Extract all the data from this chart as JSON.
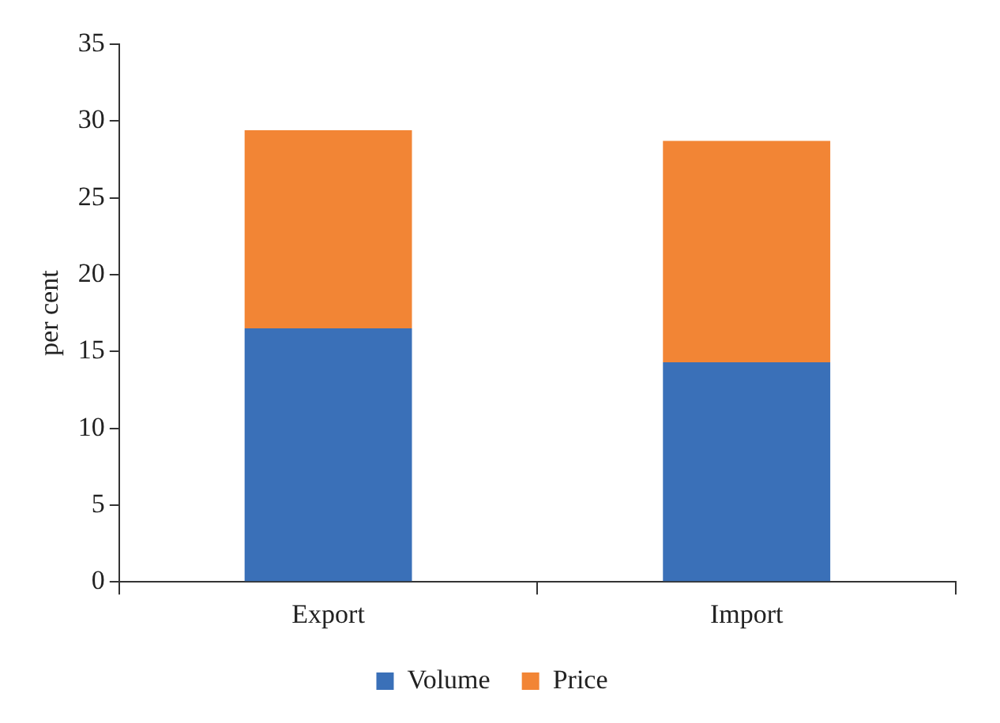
{
  "chart_data": {
    "type": "bar",
    "stacked": true,
    "categories": [
      "Export",
      "Import"
    ],
    "ylabel": "per cent",
    "series": [
      {
        "name": "Volume",
        "color": "#3a70b8",
        "values": [
          16.5,
          14.3
        ]
      },
      {
        "name": "Price",
        "color": "#f28535",
        "values": [
          12.9,
          14.4
        ]
      }
    ],
    "ylim": [
      0,
      35
    ],
    "yticks": [
      0,
      5,
      10,
      15,
      20,
      25,
      30,
      35
    ],
    "grid": false,
    "legend": "bottom"
  }
}
